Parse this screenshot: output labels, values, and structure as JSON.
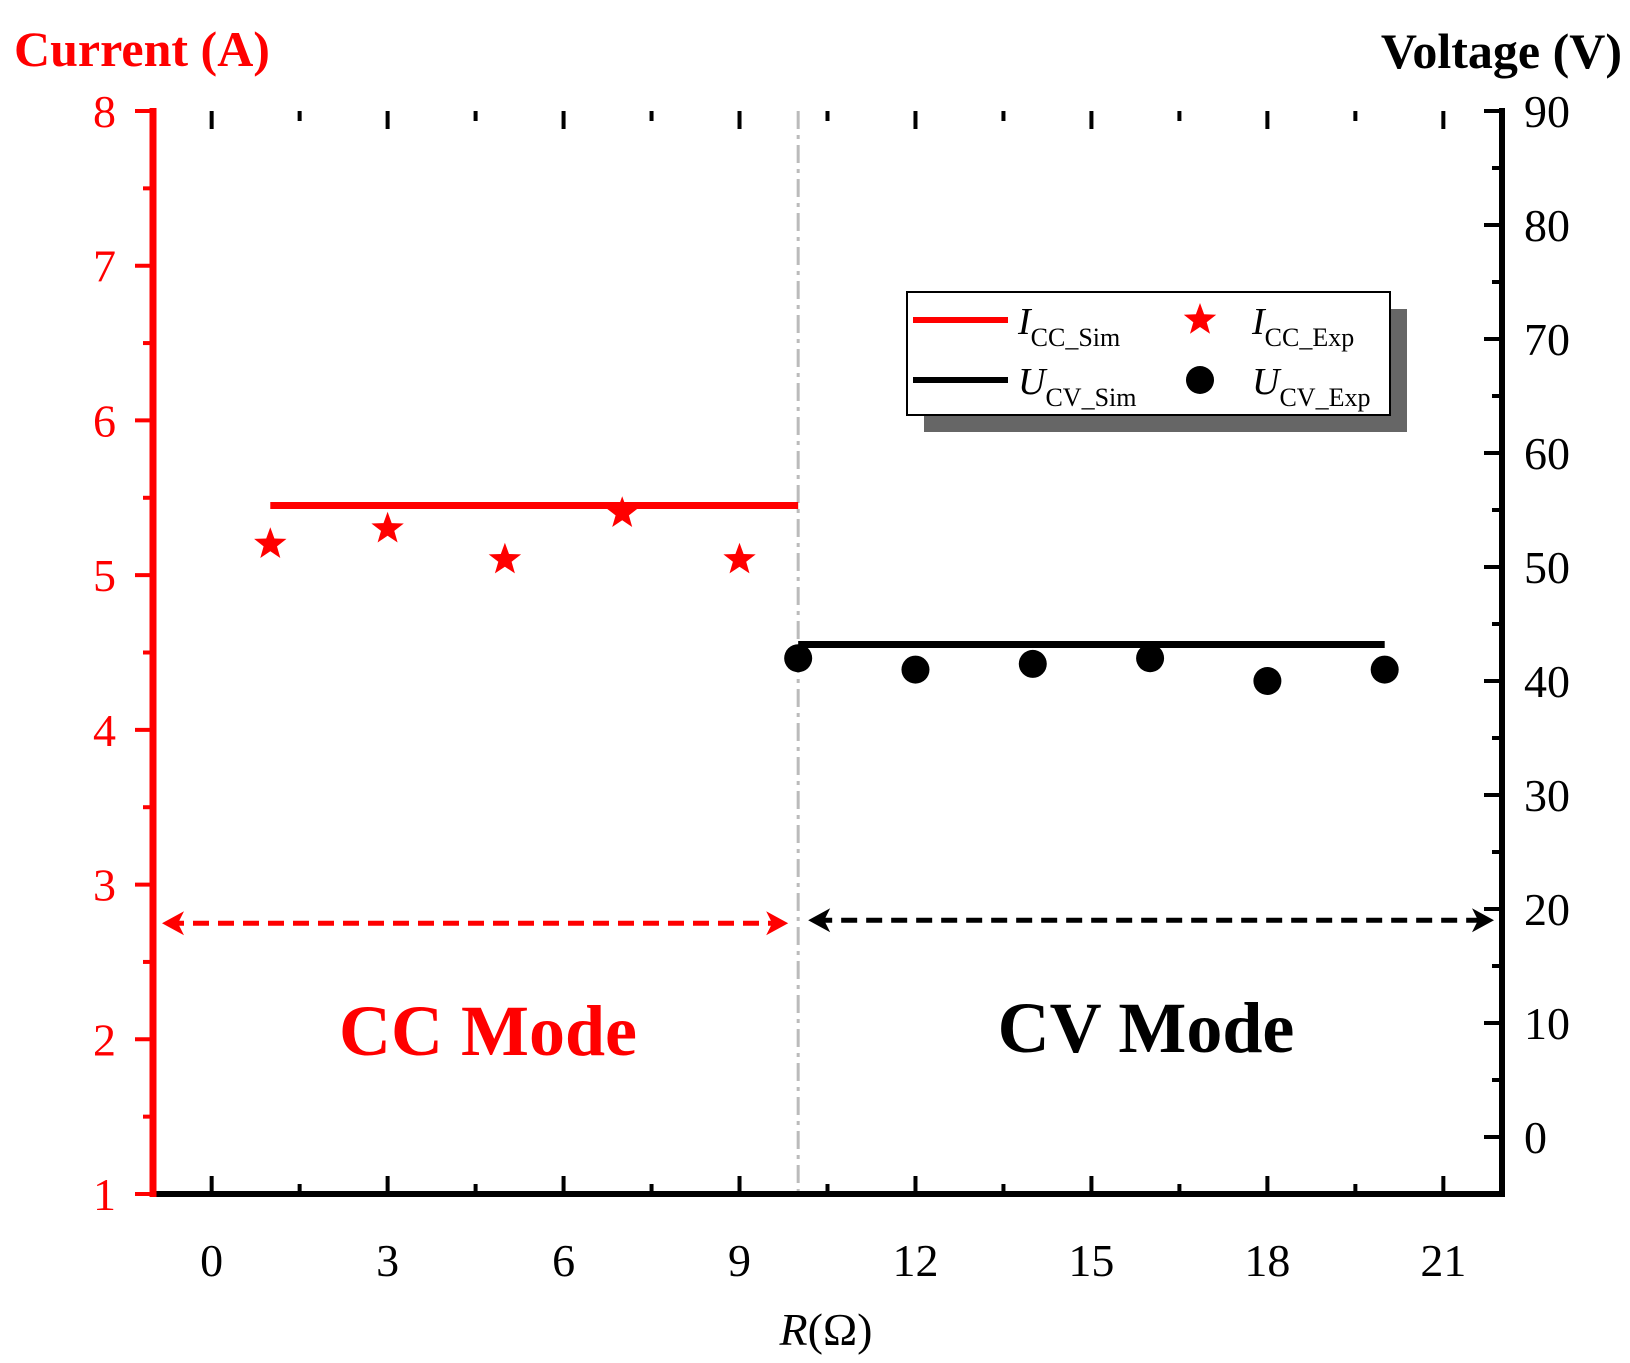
{
  "colors": {
    "current": "#ff0000",
    "voltage": "#000000",
    "divider": "#bbbbbb",
    "legend_shadow": "#666666"
  },
  "chart_data": {
    "type": "line+scatter",
    "xlabel_italic": "R",
    "xlabel_rest": "(Ω)",
    "ylabel_left": "Current (A)",
    "ylabel_right": "Voltage (V)",
    "xlim": [
      -1,
      22
    ],
    "ylim_left": [
      1,
      8
    ],
    "ylim_right": [
      -5,
      90
    ],
    "x_ticks": [
      0,
      3,
      6,
      9,
      12,
      15,
      18,
      21
    ],
    "y_left_ticks": [
      1,
      2,
      3,
      4,
      5,
      6,
      7,
      8
    ],
    "y_right_ticks": [
      0,
      10,
      20,
      30,
      40,
      50,
      60,
      70,
      80,
      90
    ],
    "mode_boundary_x": 10,
    "series": [
      {
        "name": "I_CC_Sim",
        "axis": "left",
        "kind": "line",
        "x": [
          1,
          10
        ],
        "y": [
          5.45,
          5.45
        ]
      },
      {
        "name": "I_CC_Exp",
        "axis": "left",
        "kind": "star",
        "x": [
          1,
          3,
          5,
          7,
          9
        ],
        "y": [
          5.2,
          5.3,
          5.1,
          5.4,
          5.1
        ]
      },
      {
        "name": "U_CV_Sim",
        "axis": "right",
        "kind": "line",
        "x": [
          10,
          20
        ],
        "y": [
          43.2,
          43.2
        ]
      },
      {
        "name": "U_CV_Exp",
        "axis": "right",
        "kind": "circle",
        "x": [
          10,
          12,
          14,
          16,
          18,
          20
        ],
        "y": [
          42,
          41,
          41.5,
          42,
          40,
          41
        ]
      }
    ],
    "legend": {
      "placement": "top-right",
      "entries": [
        {
          "main": "I",
          "sub": "CC_Sim"
        },
        {
          "main": "I",
          "sub": "CC_Exp"
        },
        {
          "main": "U",
          "sub": "CV_Sim"
        },
        {
          "main": "U",
          "sub": "CV_Exp"
        }
      ]
    },
    "annotations": {
      "cc_mode": "CC Mode",
      "cv_mode": "CV Mode",
      "cc_arrow_y": 2.75,
      "cv_arrow_y": 2.75
    }
  }
}
